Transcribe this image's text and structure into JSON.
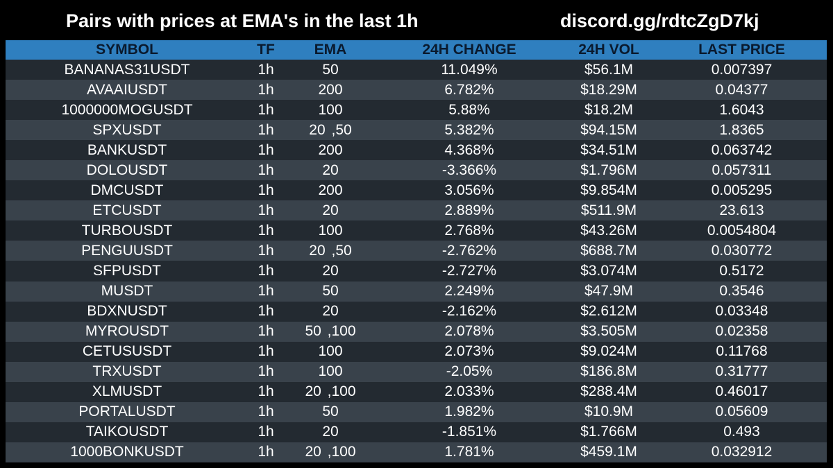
{
  "title": "Pairs with prices at EMA's in the last 1h",
  "invite": "discord.gg/rdtcZgD7kj",
  "columns": [
    "SYMBOL",
    "TF",
    "EMA",
    "24H CHANGE",
    "24H VOL",
    "LAST PRICE"
  ],
  "rows": [
    [
      "BANANAS31USDT",
      "1h",
      "50",
      "11.049%",
      "$56.1M",
      "0.007397"
    ],
    [
      "AVAAIUSDT",
      "1h",
      "200",
      "6.782%",
      "$18.29M",
      "0.04377"
    ],
    [
      "1000000MOGUSDT",
      "1h",
      "100",
      "5.88%",
      "$18.2M",
      "1.6043"
    ],
    [
      "SPXUSDT",
      "1h",
      "20 ,50",
      "5.382%",
      "$94.15M",
      "1.8365"
    ],
    [
      "BANKUSDT",
      "1h",
      "200",
      "4.368%",
      "$34.51M",
      "0.063742"
    ],
    [
      "DOLOUSDT",
      "1h",
      "20",
      "-3.366%",
      "$1.796M",
      "0.057311"
    ],
    [
      "DMCUSDT",
      "1h",
      "200",
      "3.056%",
      "$9.854M",
      "0.005295"
    ],
    [
      "ETCUSDT",
      "1h",
      "20",
      "2.889%",
      "$511.9M",
      "23.613"
    ],
    [
      "TURBOUSDT",
      "1h",
      "100",
      "2.768%",
      "$43.26M",
      "0.0054804"
    ],
    [
      "PENGUUSDT",
      "1h",
      "20 ,50",
      "-2.762%",
      "$688.7M",
      "0.030772"
    ],
    [
      "SFPUSDT",
      "1h",
      "20",
      "-2.727%",
      "$3.074M",
      "0.5172"
    ],
    [
      "MUSDT",
      "1h",
      "50",
      "2.249%",
      "$47.9M",
      "0.3546"
    ],
    [
      "BDXNUSDT",
      "1h",
      "20",
      "-2.162%",
      "$2.612M",
      "0.03348"
    ],
    [
      "MYROUSDT",
      "1h",
      "50 ,100",
      "2.078%",
      "$3.505M",
      "0.02358"
    ],
    [
      "CETUSUSDT",
      "1h",
      "100",
      "2.073%",
      "$9.024M",
      "0.11768"
    ],
    [
      "TRXUSDT",
      "1h",
      "100",
      "-2.05%",
      "$186.8M",
      "0.31777"
    ],
    [
      "XLMUSDT",
      "1h",
      "20 ,100",
      "2.033%",
      "$288.4M",
      "0.46017"
    ],
    [
      "PORTALUSDT",
      "1h",
      "50",
      "1.982%",
      "$10.9M",
      "0.05609"
    ],
    [
      "TAIKOUSDT",
      "1h",
      "20",
      "-1.851%",
      "$1.766M",
      "0.493"
    ],
    [
      "1000BONKUSDT",
      "1h",
      "20 ,100",
      "1.781%",
      "$459.1M",
      "0.032912"
    ]
  ],
  "colors": {
    "background": "#000000",
    "header": "#2f7fbf",
    "row_dark": "#232a31",
    "row_light": "#39424b",
    "text": "#ffffff",
    "header_text": "#0a1a2e"
  }
}
